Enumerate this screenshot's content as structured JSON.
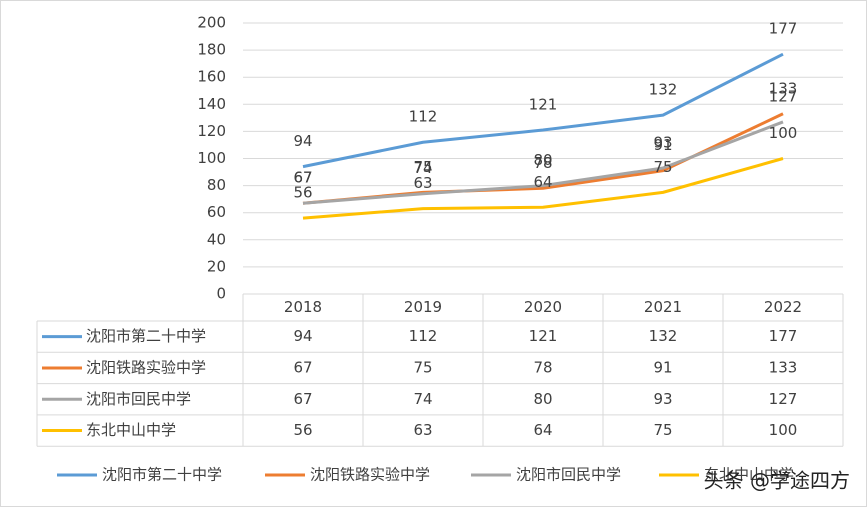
{
  "chart_data": {
    "type": "line",
    "categories": [
      "2018",
      "2019",
      "2020",
      "2021",
      "2022"
    ],
    "series": [
      {
        "name": "沈阳市第二十中学",
        "color": "#5B9BD5",
        "values": [
          94,
          112,
          121,
          132,
          177
        ]
      },
      {
        "name": "沈阳铁路实验中学",
        "color": "#ED7D31",
        "values": [
          67,
          75,
          78,
          91,
          133
        ]
      },
      {
        "name": "沈阳市回民中学",
        "color": "#A5A5A5",
        "values": [
          67,
          74,
          80,
          93,
          127
        ]
      },
      {
        "name": "东北中山中学",
        "color": "#FFC000",
        "values": [
          56,
          63,
          64,
          75,
          100
        ]
      }
    ],
    "ylim": [
      0,
      200
    ],
    "yticks": [
      0,
      20,
      40,
      60,
      80,
      100,
      120,
      140,
      160,
      180,
      200
    ],
    "grid": true,
    "legend": "bottom",
    "data_table": true
  },
  "watermark": "头条 @学途四方"
}
